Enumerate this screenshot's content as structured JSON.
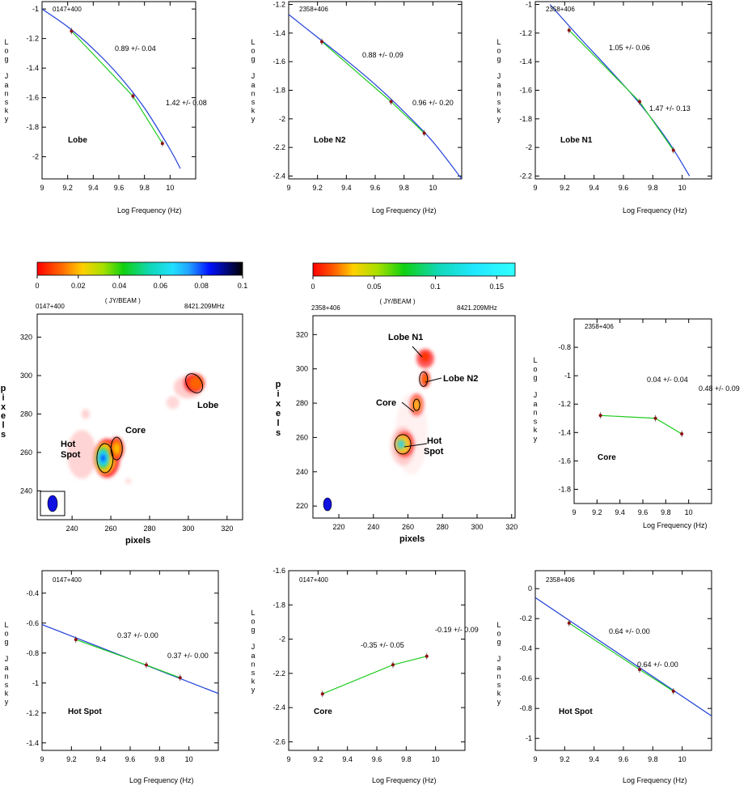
{
  "chart_data": [
    {
      "type": "line",
      "source": "0147+400",
      "region_label": "Lobe",
      "xlabel": "Log Frequency (Hz)",
      "ylabel": "Log Jansky",
      "xlim": [
        9.0,
        10.2
      ],
      "ylim": [
        -2.15,
        -0.95
      ],
      "xticks": [
        "9",
        "9.2",
        "9.4",
        "9.6",
        "9.8",
        "10"
      ],
      "yticks": [
        "-1",
        "-1.2",
        "-1.4",
        "-1.6",
        "-1.8",
        "-2"
      ],
      "x": [
        9.23,
        9.71,
        9.94
      ],
      "y": [
        -1.15,
        -1.59,
        -1.91
      ],
      "annotations": [
        "0.89 +/- 0.04",
        "1.42 +/- 0.08"
      ],
      "series": [
        {
          "name": "blue curve fit",
          "color": "#1f3fd8",
          "x": [
            9.0,
            9.2,
            9.4,
            9.6,
            9.8,
            10.0,
            10.08
          ],
          "y": [
            -1.0,
            -1.12,
            -1.27,
            -1.45,
            -1.67,
            -1.95,
            -2.08
          ]
        },
        {
          "name": "green segments",
          "color": "#22cc22",
          "x": [
            9.23,
            9.71,
            9.94
          ],
          "y": [
            -1.15,
            -1.59,
            -1.91
          ]
        }
      ]
    },
    {
      "type": "line",
      "source": "2358+406",
      "region_label": "Lobe N2",
      "xlabel": "Log Frequency (Hz)",
      "ylabel": "Log Jansky",
      "xlim": [
        9.0,
        10.2
      ],
      "ylim": [
        -2.42,
        -1.18
      ],
      "xticks": [
        "9",
        "9.2",
        "9.4",
        "9.6",
        "9.8",
        "10"
      ],
      "yticks": [
        "-1.2",
        "-1.4",
        "-1.6",
        "-1.8",
        "-2",
        "-2.2",
        "-2.4"
      ],
      "x": [
        9.23,
        9.71,
        9.94
      ],
      "y": [
        -1.46,
        -1.88,
        -2.1
      ],
      "annotations": [
        "0.88 +/- 0.09",
        "0.96 +/- 0.20"
      ],
      "series": [
        {
          "name": "blue curve fit",
          "color": "#1f3fd8",
          "x": [
            9.0,
            9.2,
            9.4,
            9.6,
            9.8,
            10.0,
            10.2
          ],
          "y": [
            -1.27,
            -1.43,
            -1.59,
            -1.76,
            -1.95,
            -2.16,
            -2.42
          ]
        },
        {
          "name": "green segments",
          "color": "#22cc22",
          "x": [
            9.23,
            9.71,
            9.94
          ],
          "y": [
            -1.46,
            -1.88,
            -2.1
          ]
        }
      ]
    },
    {
      "type": "line",
      "source": "2358+406",
      "region_label": "Lobe N1",
      "xlabel": "Log Frequency (Hz)",
      "ylabel": "Log Jansky",
      "xlim": [
        9.0,
        10.2
      ],
      "ylim": [
        -2.22,
        -0.98
      ],
      "xticks": [
        "9",
        "9.2",
        "9.4",
        "9.6",
        "9.8",
        "10"
      ],
      "yticks": [
        "-1",
        "-1.2",
        "-1.4",
        "-1.6",
        "-1.8",
        "-2",
        "-2.2"
      ],
      "x": [
        9.23,
        9.71,
        9.94
      ],
      "y": [
        -1.18,
        -1.68,
        -2.02
      ],
      "annotations": [
        "1.05 +/- 0.06",
        "1.47 +/- 0.13"
      ],
      "series": [
        {
          "name": "blue curve fit",
          "color": "#1f3fd8",
          "x": [
            9.1,
            9.3,
            9.5,
            9.7,
            9.9,
            10.05
          ],
          "y": [
            -1.0,
            -1.23,
            -1.45,
            -1.68,
            -1.95,
            -2.2
          ]
        },
        {
          "name": "green segments",
          "color": "#22cc22",
          "x": [
            9.23,
            9.71,
            9.94
          ],
          "y": [
            -1.18,
            -1.68,
            -2.02
          ]
        }
      ]
    },
    {
      "type": "line",
      "source": "2358+406",
      "region_label": "Core",
      "xlabel": "Log Frequency (Hz)",
      "ylabel": "Log Jansky",
      "xlim": [
        9.0,
        10.2
      ],
      "ylim": [
        -1.9,
        -0.6
      ],
      "xticks": [
        "9",
        "9.2",
        "9.4",
        "9.6",
        "9.8",
        "10"
      ],
      "yticks": [
        "-0.8",
        "-1",
        "-1.2",
        "-1.4",
        "-1.6",
        "-1.8"
      ],
      "x": [
        9.23,
        9.71,
        9.94
      ],
      "y": [
        -1.28,
        -1.3,
        -1.41
      ],
      "annotations": [
        "0.04 +/- 0.04",
        "0.48 +/- 0.09"
      ],
      "series": [
        {
          "name": "green segments",
          "color": "#22cc22",
          "x": [
            9.23,
            9.71,
            9.94
          ],
          "y": [
            -1.28,
            -1.3,
            -1.41
          ]
        }
      ]
    },
    {
      "type": "line",
      "source": "0147+400",
      "region_label": "Hot Spot",
      "xlabel": "Log Frequency (Hz)",
      "ylabel": "Log Jansky",
      "xlim": [
        9.0,
        10.2
      ],
      "ylim": [
        -1.45,
        -0.25
      ],
      "xticks": [
        "9",
        "9.2",
        "9.4",
        "9.6",
        "9.8",
        "10"
      ],
      "yticks": [
        "-0.4",
        "-0.6",
        "-0.8",
        "-1",
        "-1.2",
        "-1.4"
      ],
      "x": [
        9.23,
        9.71,
        9.94
      ],
      "y": [
        -0.71,
        -0.88,
        -0.965
      ],
      "annotations": [
        "0.37 +/- 0.00",
        "0.37 +/- 0.00"
      ],
      "series": [
        {
          "name": "blue line fit",
          "color": "#1f3fd8",
          "x": [
            9.0,
            10.2
          ],
          "y": [
            -0.61,
            -1.07
          ]
        },
        {
          "name": "green segments",
          "color": "#22cc22",
          "x": [
            9.23,
            9.71,
            9.94
          ],
          "y": [
            -0.71,
            -0.88,
            -0.965
          ]
        }
      ]
    },
    {
      "type": "line",
      "source": "0147+400",
      "region_label": "Core",
      "xlabel": "Log Frequency (Hz)",
      "ylabel": "Log Jansky",
      "xlim": [
        9.0,
        10.2
      ],
      "ylim": [
        -2.65,
        -1.6
      ],
      "xticks": [
        "9",
        "9.2",
        "9.4",
        "9.6",
        "9.8",
        "10"
      ],
      "yticks": [
        "-1.6",
        "-1.8",
        "-2",
        "-2.2",
        "-2.4",
        "-2.6"
      ],
      "x": [
        9.23,
        9.71,
        9.94
      ],
      "y": [
        -2.32,
        -2.15,
        -2.1
      ],
      "annotations": [
        "-0.35 +/- 0.05",
        "-0.19 +/- 0.09"
      ],
      "series": [
        {
          "name": "green segments",
          "color": "#22cc22",
          "x": [
            9.23,
            9.71,
            9.94
          ],
          "y": [
            -2.32,
            -2.15,
            -2.1
          ]
        }
      ]
    },
    {
      "type": "line",
      "source": "2358+406",
      "region_label": "Hot Spot",
      "xlabel": "Log Frequency (Hz)",
      "ylabel": "Log Jansky",
      "xlim": [
        9.0,
        10.2
      ],
      "ylim": [
        -1.08,
        0.12
      ],
      "xticks": [
        "9",
        "9.2",
        "9.4",
        "9.6",
        "9.8",
        "10"
      ],
      "yticks": [
        "0",
        "-0.2",
        "-0.4",
        "-0.6",
        "-0.8",
        "-1"
      ],
      "x": [
        9.23,
        9.71,
        9.94
      ],
      "y": [
        -0.23,
        -0.54,
        -0.685
      ],
      "annotations": [
        "0.64 +/- 0.00",
        "0.64 +/- 0.00"
      ],
      "series": [
        {
          "name": "blue line fit",
          "color": "#1f3fd8",
          "x": [
            9.0,
            10.2
          ],
          "y": [
            -0.06,
            -0.85
          ]
        },
        {
          "name": "green segments",
          "color": "#22cc22",
          "x": [
            9.23,
            9.71,
            9.94
          ],
          "y": [
            -0.23,
            -0.54,
            -0.685
          ]
        }
      ]
    },
    {
      "type": "heatmap",
      "source": "0147+400",
      "frequency": "8421.209MHz",
      "xlabel": "pixels",
      "ylabel": "pixels",
      "xlim": [
        222,
        328
      ],
      "ylim": [
        225,
        332
      ],
      "xticks": [
        "240",
        "260",
        "280",
        "300",
        "320"
      ],
      "yticks": [
        "240",
        "260",
        "280",
        "300",
        "320"
      ],
      "colorbar": {
        "label": "( JY/BEAM )",
        "min": 0,
        "max": 0.1,
        "ticks": [
          "0",
          "0.02",
          "0.04",
          "0.06",
          "0.08",
          "0.1"
        ]
      },
      "labels": [
        "Hot",
        "Spot",
        "Core",
        "Lobe"
      ]
    },
    {
      "type": "heatmap",
      "source": "2358+406",
      "frequency": "8421.209MHz",
      "xlabel": "pixels",
      "ylabel": "pixels",
      "xlim": [
        205,
        322
      ],
      "ylim": [
        213,
        331
      ],
      "xticks": [
        "220",
        "240",
        "260",
        "280",
        "300",
        "320"
      ],
      "yticks": [
        "220",
        "240",
        "260",
        "280",
        "300",
        "320"
      ],
      "colorbar": {
        "label": "( JY/BEAM )",
        "min": 0,
        "max": 0.165,
        "ticks": [
          "0",
          "0.05",
          "0.1",
          "0.15"
        ]
      },
      "labels": [
        "Lobe N1",
        "Lobe N2",
        "Core",
        "Hot",
        "Spot"
      ]
    }
  ]
}
